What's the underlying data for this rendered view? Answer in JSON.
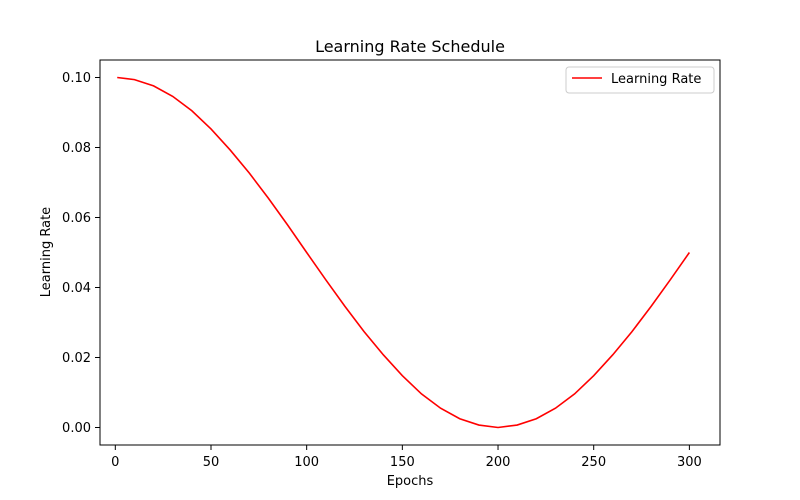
{
  "chart_data": {
    "type": "line",
    "title": "Learning Rate Schedule",
    "xlabel": "Epochs",
    "ylabel": "Learning Rate",
    "xlim": [
      -8,
      316
    ],
    "ylim": [
      -0.005,
      0.105
    ],
    "xticks": [
      0,
      50,
      100,
      150,
      200,
      250,
      300
    ],
    "yticks": [
      0.0,
      0.02,
      0.04,
      0.06,
      0.08,
      0.1
    ],
    "ytick_labels": [
      "0.00",
      "0.02",
      "0.04",
      "0.06",
      "0.08",
      "0.10"
    ],
    "grid": false,
    "legend": "top-right",
    "series": [
      {
        "name": "Learning Rate",
        "color": "#ff0000",
        "x": [
          1,
          10,
          20,
          30,
          40,
          50,
          60,
          70,
          80,
          90,
          100,
          110,
          120,
          130,
          140,
          150,
          160,
          170,
          180,
          190,
          200,
          210,
          220,
          230,
          240,
          250,
          260,
          270,
          280,
          290,
          300
        ],
        "y": [
          0.1,
          0.0994,
          0.0976,
          0.0946,
          0.0905,
          0.0853,
          0.0793,
          0.0727,
          0.0655,
          0.0579,
          0.05,
          0.0422,
          0.0346,
          0.0274,
          0.0208,
          0.0148,
          0.0096,
          0.0055,
          0.0025,
          0.0007,
          0.0,
          0.0007,
          0.0025,
          0.0055,
          0.0096,
          0.0148,
          0.0208,
          0.0274,
          0.0346,
          0.0422,
          0.05
        ]
      }
    ]
  }
}
